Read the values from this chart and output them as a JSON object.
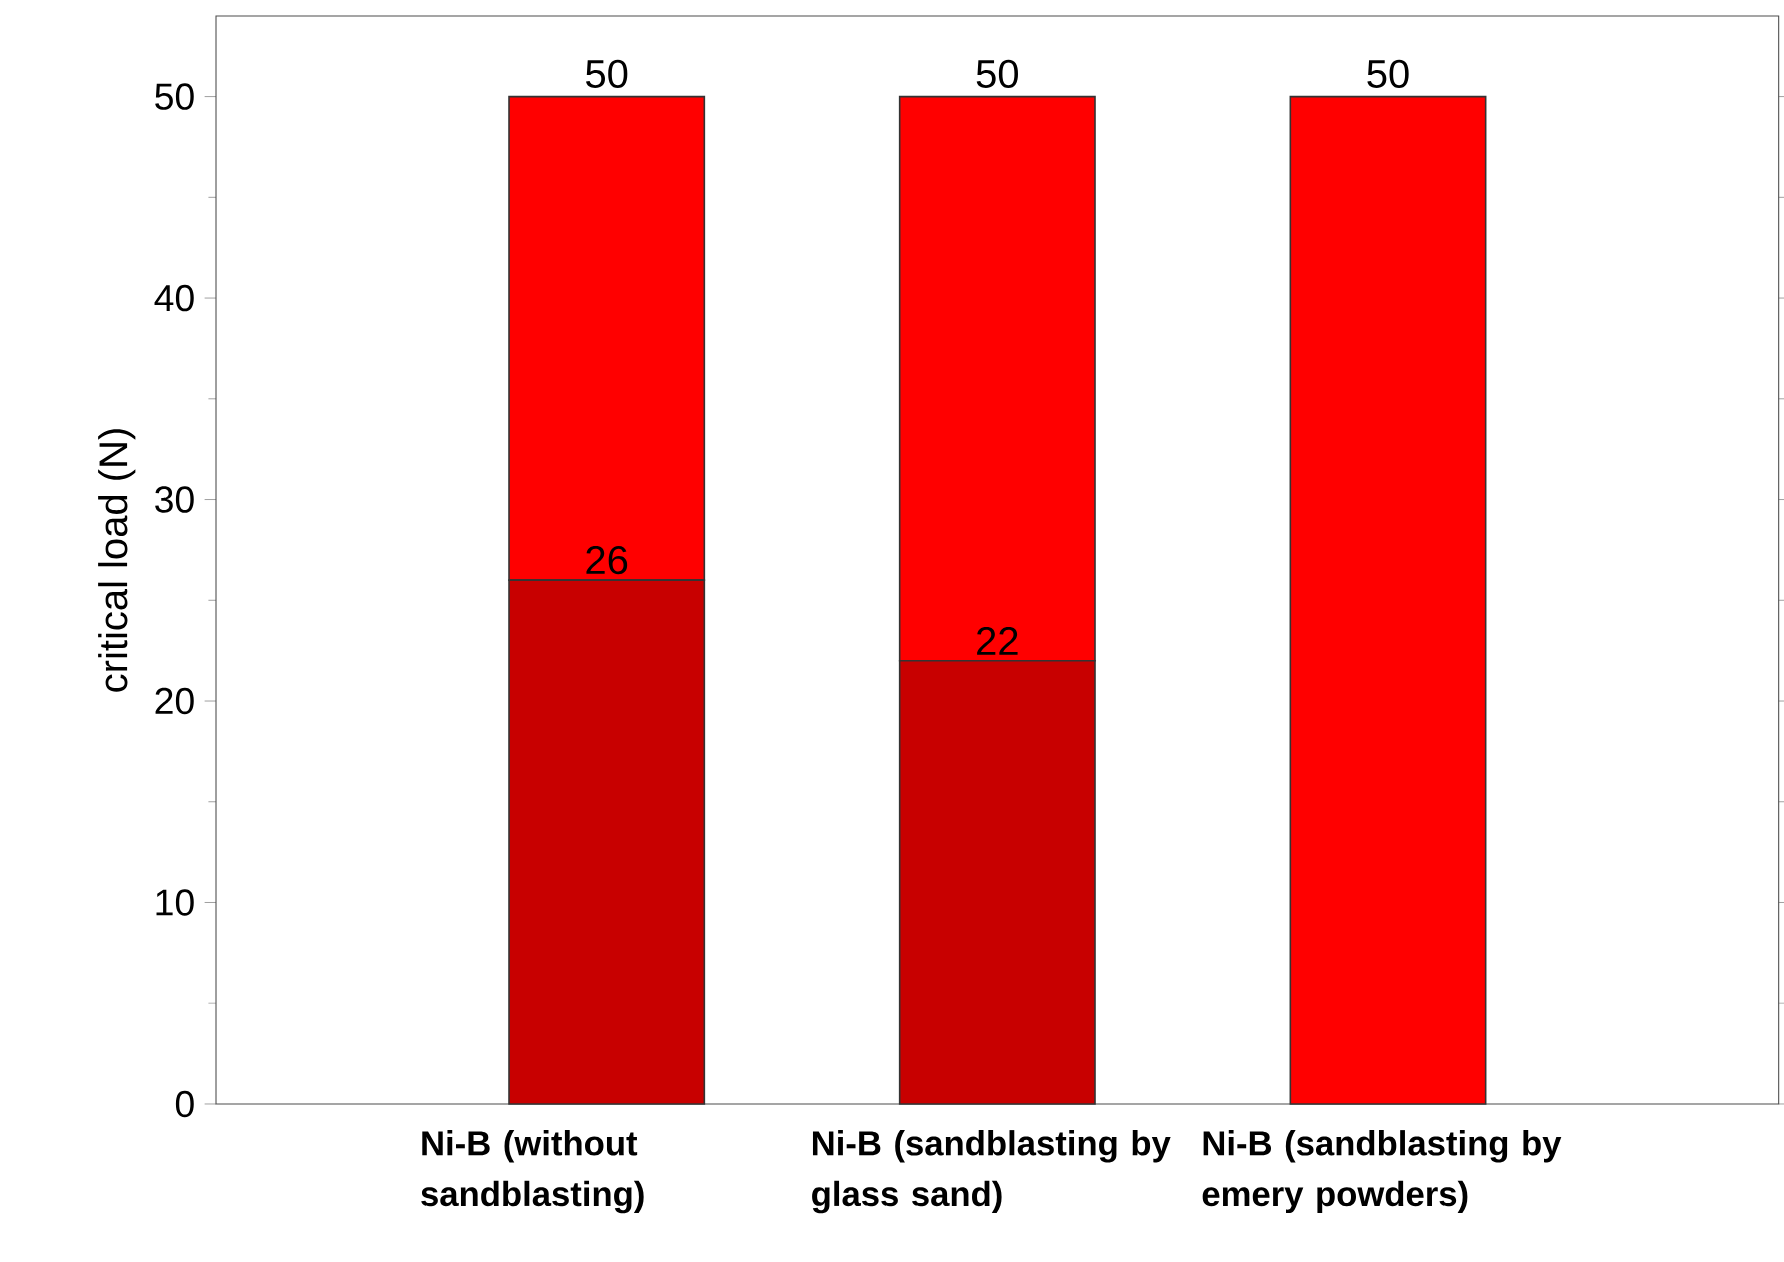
{
  "chart_data": {
    "type": "bar",
    "stacked": true,
    "ylabel": "critical load (N)",
    "categories": [
      "Ni-B (without sandblasting)",
      "Ni-B (sandblasting by glass sand)",
      "Ni-B (sandblasting by emery powders)"
    ],
    "series": [
      {
        "color": "#c80000",
        "values": [
          26,
          22,
          null
        ],
        "value_labels": [
          "26",
          "22",
          null
        ]
      },
      {
        "color": "#ff0000",
        "values": [
          24,
          28,
          50
        ]
      }
    ],
    "totals": [
      "50",
      "50",
      "50"
    ],
    "ylim": [
      0,
      54
    ],
    "yticks": [
      0,
      10,
      20,
      30,
      40,
      50
    ]
  }
}
